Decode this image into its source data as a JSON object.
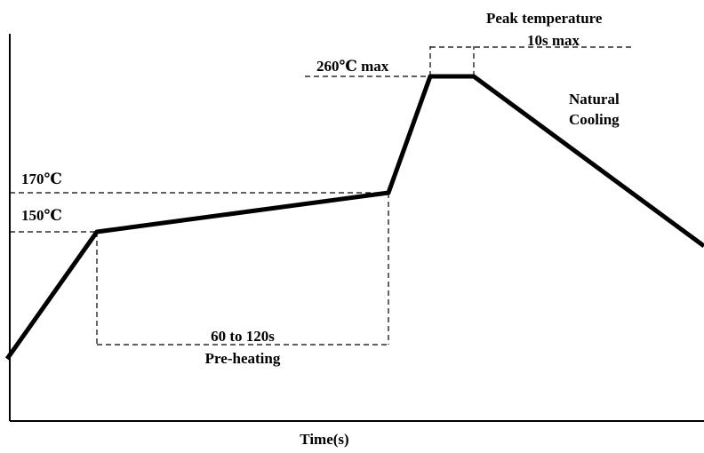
{
  "labels": {
    "temp_170": "170℃",
    "temp_150": "150℃",
    "temp_260": "260℃ max",
    "peak_title": "Peak temperature",
    "peak_time": "10s max",
    "cooling_line1": "Natural",
    "cooling_line2": "Cooling",
    "preheat_time": "60 to 120s",
    "preheat_label": "Pre-heating",
    "x_axis": "Time(s)"
  },
  "colors": {
    "line": "#000000",
    "background": "#ffffff"
  }
}
